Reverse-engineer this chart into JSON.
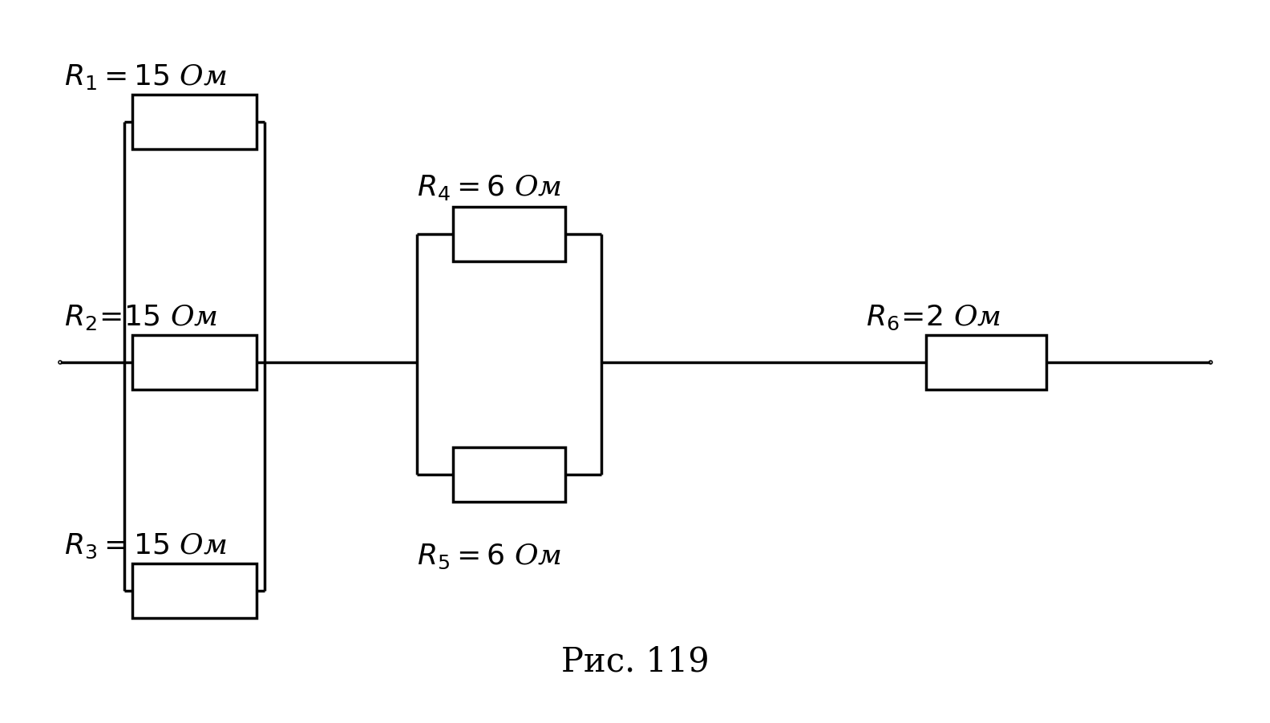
{
  "bg_color": "#ffffff",
  "line_color": "#000000",
  "resistor_fill": "#ffffff",
  "caption": "Рис. 119",
  "lw": 2.5,
  "node_r": 0.009,
  "terminal_r": 0.018,
  "fig_w": 15.84,
  "fig_h": 9.02,
  "dpi": 100
}
